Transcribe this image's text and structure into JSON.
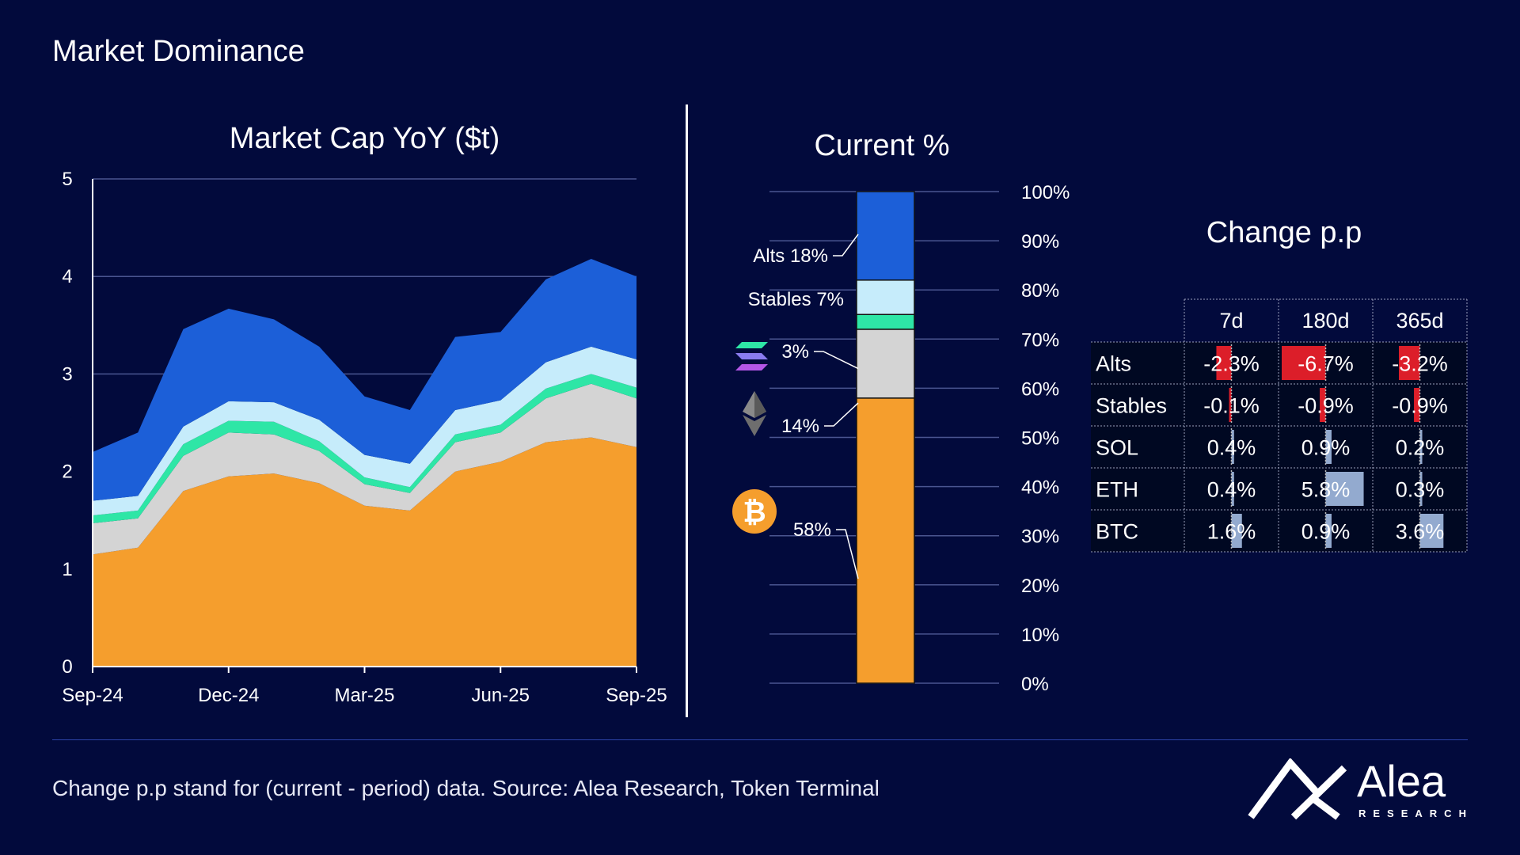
{
  "page": {
    "title": "Market Dominance",
    "footer_note": "Change p.p stand for (current - period) data. Source: Alea Research, Token Terminal",
    "brand_name": "Alea",
    "brand_sub": "RESEARCH"
  },
  "colors": {
    "background": "#020a3c",
    "btc": "#f59e2d",
    "eth": "#d4d4d4",
    "sol": "#2ee6a6",
    "stables": "#c6ecfb",
    "alts": "#1c5fd8",
    "negative": "#e8202a",
    "positive": "#9bb3d9"
  },
  "chart_data": [
    {
      "type": "area",
      "stacked": true,
      "title": "Market Cap YoY ($t)",
      "ylim": [
        0,
        5
      ],
      "yticks": [
        0,
        1,
        2,
        3,
        4,
        5
      ],
      "xticks": [
        "Sep-24",
        "Dec-24",
        "Mar-25",
        "Jun-25",
        "Sep-25"
      ],
      "x": [
        "Sep-24",
        "Oct-24",
        "Nov-24",
        "Dec-24",
        "Jan-25",
        "Feb-25",
        "Mar-25",
        "Apr-25",
        "May-25",
        "Jun-25",
        "Jul-25",
        "Aug-25",
        "Sep-25"
      ],
      "series": [
        {
          "key": "btc",
          "values": [
            1.15,
            1.22,
            1.8,
            1.95,
            1.98,
            1.88,
            1.65,
            1.6,
            2.0,
            2.1,
            2.3,
            2.35,
            2.25
          ]
        },
        {
          "key": "eth",
          "values": [
            0.32,
            0.3,
            0.36,
            0.45,
            0.4,
            0.33,
            0.22,
            0.18,
            0.3,
            0.3,
            0.45,
            0.55,
            0.5
          ]
        },
        {
          "key": "sol",
          "values": [
            0.08,
            0.08,
            0.12,
            0.12,
            0.13,
            0.1,
            0.07,
            0.06,
            0.08,
            0.08,
            0.1,
            0.1,
            0.11
          ]
        },
        {
          "key": "stables",
          "values": [
            0.15,
            0.15,
            0.18,
            0.2,
            0.2,
            0.22,
            0.23,
            0.24,
            0.25,
            0.25,
            0.27,
            0.28,
            0.29
          ]
        },
        {
          "key": "alts",
          "values": [
            0.5,
            0.65,
            1.0,
            0.95,
            0.85,
            0.75,
            0.6,
            0.55,
            0.75,
            0.7,
            0.85,
            0.9,
            0.85
          ]
        }
      ]
    },
    {
      "type": "bar",
      "stacked": true,
      "title": "Current %",
      "yticks": [
        "0%",
        "10%",
        "20%",
        "30%",
        "40%",
        "50%",
        "60%",
        "70%",
        "80%",
        "90%",
        "100%"
      ],
      "segments": [
        {
          "key": "btc",
          "value": 58,
          "label": "58%"
        },
        {
          "key": "eth",
          "value": 14,
          "label": "14%"
        },
        {
          "key": "sol",
          "value": 3,
          "label": "3%"
        },
        {
          "key": "stables",
          "value": 7,
          "label": "Stables 7%"
        },
        {
          "key": "alts",
          "value": 18,
          "label": "Alts 18%"
        }
      ]
    },
    {
      "type": "table",
      "title": "Change p.p",
      "columns": [
        "7d",
        "180d",
        "365d"
      ],
      "rows": [
        {
          "name": "Alts",
          "values": [
            -2.3,
            -6.7,
            -3.2
          ],
          "labels": [
            "-2.3%",
            "-6.7%",
            "-3.2%"
          ]
        },
        {
          "name": "Stables",
          "values": [
            -0.1,
            -0.9,
            -0.9
          ],
          "labels": [
            "-0.1%",
            "-0.9%",
            "-0.9%"
          ]
        },
        {
          "name": "SOL",
          "values": [
            0.4,
            0.9,
            0.2
          ],
          "labels": [
            "0.4%",
            "0.9%",
            "0.2%"
          ]
        },
        {
          "name": "ETH",
          "values": [
            0.4,
            5.8,
            0.3
          ],
          "labels": [
            "0.4%",
            "5.8%",
            "0.3%"
          ]
        },
        {
          "name": "BTC",
          "values": [
            1.6,
            0.9,
            3.6
          ],
          "labels": [
            "1.6%",
            "0.9%",
            "3.6%"
          ]
        }
      ]
    }
  ]
}
